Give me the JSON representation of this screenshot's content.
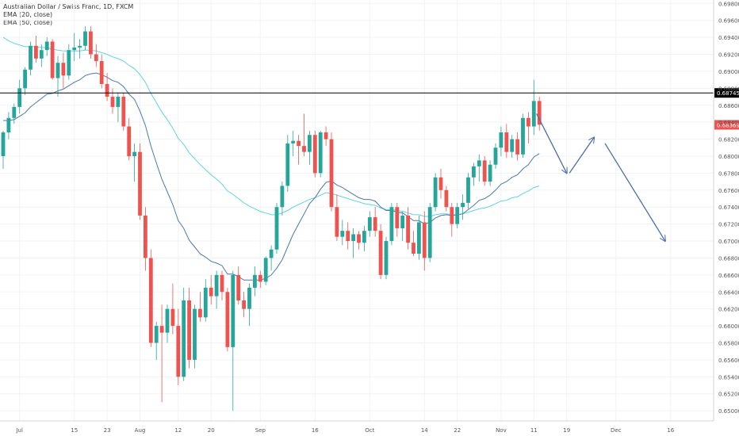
{
  "header": {
    "title": "Australian Dollar / Swiss Franc, 1D, FXCM",
    "ema20_label": "EMA (20, close)",
    "ema50_label": "EMA (50, close)"
  },
  "colors": {
    "up": "#26a69a",
    "down": "#ef5350",
    "ema20": "#4a78b0",
    "ema50": "#5fd3e6",
    "level_line": "#000000",
    "arrow": "#4a6fa5",
    "grid": "#f0f3f6",
    "axis_text": "#555555"
  },
  "chart_data": {
    "type": "candlestick",
    "ylim": [
      0.6488,
      0.6984
    ],
    "y_ticks": [
      "0.69800",
      "0.69600",
      "0.69400",
      "0.69200",
      "0.69000",
      "0.68800",
      "0.68600",
      "0.68400",
      "0.68200",
      "0.68000",
      "0.67800",
      "0.67600",
      "0.67400",
      "0.67200",
      "0.67000",
      "0.66800",
      "0.66600",
      "0.66400",
      "0.66200",
      "0.66000",
      "0.65800",
      "0.65600",
      "0.65400",
      "0.65200",
      "0.65000"
    ],
    "x_ticks": [
      {
        "label": "Jul",
        "index": 3
      },
      {
        "label": "15",
        "index": 13
      },
      {
        "label": "23",
        "index": 19
      },
      {
        "label": "Aug",
        "index": 25
      },
      {
        "label": "12",
        "index": 32
      },
      {
        "label": "20",
        "index": 38
      },
      {
        "label": "Sep",
        "index": 47
      },
      {
        "label": "16",
        "index": 57
      },
      {
        "label": "Oct",
        "index": 67
      },
      {
        "label": "14",
        "index": 77
      },
      {
        "label": "22",
        "index": 83
      },
      {
        "label": "Nov",
        "index": 91
      },
      {
        "label": "11",
        "index": 97
      },
      {
        "label": "19",
        "index": 103
      },
      {
        "label": "Dec",
        "index": 112
      },
      {
        "label": "16",
        "index": 122
      }
    ],
    "horizontal_level": {
      "value": 0.68745,
      "label": "0.68745"
    },
    "last_price": {
      "value": 0.68369,
      "label": "0.68369"
    },
    "candles": [
      [
        0.68,
        0.683,
        0.6785,
        0.6828
      ],
      [
        0.6828,
        0.6852,
        0.682,
        0.6845
      ],
      [
        0.6845,
        0.6862,
        0.6838,
        0.6858
      ],
      [
        0.6858,
        0.689,
        0.685,
        0.688
      ],
      [
        0.688,
        0.6905,
        0.6872,
        0.6902
      ],
      [
        0.6902,
        0.6935,
        0.6895,
        0.693
      ],
      [
        0.693,
        0.6942,
        0.691,
        0.6915
      ],
      [
        0.6915,
        0.6932,
        0.6905,
        0.6925
      ],
      [
        0.6925,
        0.694,
        0.6918,
        0.6935
      ],
      [
        0.6935,
        0.6938,
        0.689,
        0.6892
      ],
      [
        0.6892,
        0.6918,
        0.687,
        0.691
      ],
      [
        0.691,
        0.6922,
        0.688,
        0.6895
      ],
      [
        0.6895,
        0.6932,
        0.689,
        0.6925
      ],
      [
        0.6925,
        0.6945,
        0.6912,
        0.6928
      ],
      [
        0.6928,
        0.6938,
        0.6915,
        0.693
      ],
      [
        0.693,
        0.6953,
        0.6925,
        0.6947
      ],
      [
        0.6947,
        0.6953,
        0.6915,
        0.692
      ],
      [
        0.692,
        0.6932,
        0.6905,
        0.6912
      ],
      [
        0.6912,
        0.692,
        0.688,
        0.6885
      ],
      [
        0.6885,
        0.6898,
        0.6865,
        0.687
      ],
      [
        0.687,
        0.688,
        0.685,
        0.6858
      ],
      [
        0.6858,
        0.6875,
        0.684,
        0.687
      ],
      [
        0.687,
        0.6875,
        0.683,
        0.6835
      ],
      [
        0.6835,
        0.6845,
        0.6795,
        0.68
      ],
      [
        0.68,
        0.6815,
        0.677,
        0.6805
      ],
      [
        0.6805,
        0.6815,
        0.6725,
        0.673
      ],
      [
        0.673,
        0.674,
        0.6665,
        0.668
      ],
      [
        0.668,
        0.669,
        0.6575,
        0.658
      ],
      [
        0.658,
        0.6605,
        0.656,
        0.66
      ],
      [
        0.66,
        0.6625,
        0.651,
        0.6592
      ],
      [
        0.6592,
        0.6625,
        0.658,
        0.662
      ],
      [
        0.662,
        0.665,
        0.659,
        0.66
      ],
      [
        0.66,
        0.662,
        0.653,
        0.654
      ],
      [
        0.654,
        0.6645,
        0.6535,
        0.663
      ],
      [
        0.663,
        0.6645,
        0.655,
        0.656
      ],
      [
        0.656,
        0.6625,
        0.655,
        0.662
      ],
      [
        0.662,
        0.664,
        0.6605,
        0.661
      ],
      [
        0.661,
        0.6655,
        0.6605,
        0.6645
      ],
      [
        0.6645,
        0.666,
        0.6625,
        0.6635
      ],
      [
        0.6635,
        0.6665,
        0.662,
        0.666
      ],
      [
        0.666,
        0.6665,
        0.663,
        0.664
      ],
      [
        0.664,
        0.6645,
        0.657,
        0.6575
      ],
      [
        0.6575,
        0.6665,
        0.65,
        0.666
      ],
      [
        0.666,
        0.667,
        0.6625,
        0.663
      ],
      [
        0.663,
        0.664,
        0.661,
        0.662
      ],
      [
        0.662,
        0.665,
        0.66,
        0.6645
      ],
      [
        0.6645,
        0.667,
        0.6635,
        0.666
      ],
      [
        0.666,
        0.6665,
        0.6645,
        0.6652
      ],
      [
        0.6652,
        0.6682,
        0.6648,
        0.668
      ],
      [
        0.668,
        0.6695,
        0.6665,
        0.669
      ],
      [
        0.669,
        0.6745,
        0.6685,
        0.674
      ],
      [
        0.674,
        0.677,
        0.673,
        0.6765
      ],
      [
        0.6765,
        0.6825,
        0.6758,
        0.6815
      ],
      [
        0.6815,
        0.683,
        0.68,
        0.6818
      ],
      [
        0.6818,
        0.6825,
        0.679,
        0.6812
      ],
      [
        0.6812,
        0.685,
        0.68,
        0.6805
      ],
      [
        0.6805,
        0.683,
        0.679,
        0.6825
      ],
      [
        0.6825,
        0.683,
        0.6775,
        0.678
      ],
      [
        0.678,
        0.683,
        0.6775,
        0.6828
      ],
      [
        0.6828,
        0.6835,
        0.6812,
        0.682
      ],
      [
        0.682,
        0.6828,
        0.6735,
        0.674
      ],
      [
        0.674,
        0.6755,
        0.67,
        0.6705
      ],
      [
        0.6705,
        0.6725,
        0.6695,
        0.6712
      ],
      [
        0.6712,
        0.6722,
        0.669,
        0.67
      ],
      [
        0.67,
        0.6715,
        0.668,
        0.6708
      ],
      [
        0.6708,
        0.6712,
        0.669,
        0.6698
      ],
      [
        0.6698,
        0.6718,
        0.6688,
        0.6712
      ],
      [
        0.6712,
        0.6735,
        0.6705,
        0.6728
      ],
      [
        0.6728,
        0.674,
        0.6705,
        0.6712
      ],
      [
        0.6712,
        0.672,
        0.6655,
        0.666
      ],
      [
        0.666,
        0.6705,
        0.6655,
        0.67
      ],
      [
        0.67,
        0.6745,
        0.6695,
        0.674
      ],
      [
        0.674,
        0.6745,
        0.6705,
        0.6715
      ],
      [
        0.6715,
        0.6735,
        0.67,
        0.673
      ],
      [
        0.673,
        0.674,
        0.669,
        0.6698
      ],
      [
        0.6698,
        0.6712,
        0.6682,
        0.6685
      ],
      [
        0.6685,
        0.673,
        0.6678,
        0.6722
      ],
      [
        0.6722,
        0.6735,
        0.6665,
        0.668
      ],
      [
        0.668,
        0.6745,
        0.6675,
        0.674
      ],
      [
        0.674,
        0.678,
        0.6735,
        0.6775
      ],
      [
        0.6775,
        0.6785,
        0.675,
        0.676
      ],
      [
        0.676,
        0.6765,
        0.6735,
        0.674
      ],
      [
        0.674,
        0.6745,
        0.6705,
        0.672
      ],
      [
        0.672,
        0.6745,
        0.6715,
        0.674
      ],
      [
        0.674,
        0.6755,
        0.6725,
        0.6745
      ],
      [
        0.6745,
        0.678,
        0.6738,
        0.6775
      ],
      [
        0.6775,
        0.6792,
        0.6765,
        0.6788
      ],
      [
        0.6788,
        0.6802,
        0.677,
        0.6795
      ],
      [
        0.6795,
        0.68,
        0.6765,
        0.677
      ],
      [
        0.677,
        0.6795,
        0.6765,
        0.679
      ],
      [
        0.679,
        0.6815,
        0.6785,
        0.681
      ],
      [
        0.681,
        0.6835,
        0.68,
        0.6828
      ],
      [
        0.6828,
        0.6838,
        0.6798,
        0.6805
      ],
      [
        0.6805,
        0.6825,
        0.6798,
        0.682
      ],
      [
        0.682,
        0.6828,
        0.6795,
        0.6802
      ],
      [
        0.6802,
        0.685,
        0.6798,
        0.6845
      ],
      [
        0.6845,
        0.6852,
        0.6815,
        0.6835
      ],
      [
        0.6835,
        0.689,
        0.6825,
        0.6865
      ],
      [
        0.6865,
        0.687,
        0.683,
        0.6837
      ]
    ],
    "ema20": [
      0.6842,
      0.6842,
      0.6843,
      0.6847,
      0.6851,
      0.6858,
      0.6863,
      0.6868,
      0.6873,
      0.6874,
      0.6877,
      0.6879,
      0.6883,
      0.6887,
      0.689,
      0.6895,
      0.6897,
      0.6898,
      0.6896,
      0.6893,
      0.6889,
      0.6887,
      0.6882,
      0.6873,
      0.6867,
      0.6853,
      0.6836,
      0.6812,
      0.6792,
      0.6773,
      0.6758,
      0.6743,
      0.6724,
      0.6715,
      0.6701,
      0.6693,
      0.6685,
      0.6681,
      0.6676,
      0.6674,
      0.6671,
      0.6661,
      0.6661,
      0.6658,
      0.6654,
      0.6654,
      0.6654,
      0.6654,
      0.6656,
      0.666,
      0.6668,
      0.6678,
      0.6693,
      0.6708,
      0.672,
      0.6732,
      0.6744,
      0.6751,
      0.6761,
      0.6769,
      0.6771,
      0.6766,
      0.6763,
      0.6759,
      0.6755,
      0.6751,
      0.6749,
      0.6749,
      0.6747,
      0.674,
      0.6736,
      0.6736,
      0.6734,
      0.6733,
      0.6729,
      0.6724,
      0.6724,
      0.672,
      0.6722,
      0.6727,
      0.673,
      0.6731,
      0.673,
      0.6731,
      0.6732,
      0.6737,
      0.6742,
      0.6748,
      0.675,
      0.6754,
      0.676,
      0.6767,
      0.677,
      0.6775,
      0.6778,
      0.6785,
      0.679,
      0.6799,
      0.6803
    ],
    "ema50": [
      0.694,
      0.6936,
      0.6933,
      0.6931,
      0.6929,
      0.6929,
      0.6929,
      0.6928,
      0.6928,
      0.6926,
      0.6925,
      0.6924,
      0.6924,
      0.6924,
      0.6924,
      0.6925,
      0.6925,
      0.6924,
      0.6922,
      0.692,
      0.6917,
      0.6915,
      0.6912,
      0.6907,
      0.6903,
      0.6896,
      0.6887,
      0.6874,
      0.6863,
      0.6852,
      0.6843,
      0.6833,
      0.6821,
      0.6814,
      0.6804,
      0.6797,
      0.679,
      0.6784,
      0.6778,
      0.6773,
      0.6767,
      0.6759,
      0.6755,
      0.675,
      0.6745,
      0.6741,
      0.6738,
      0.6735,
      0.6733,
      0.6731,
      0.6731,
      0.6733,
      0.6736,
      0.674,
      0.6743,
      0.6746,
      0.6749,
      0.6751,
      0.6754,
      0.6757,
      0.6756,
      0.6754,
      0.6752,
      0.675,
      0.6748,
      0.6746,
      0.6744,
      0.6743,
      0.6742,
      0.6739,
      0.6737,
      0.6737,
      0.6736,
      0.6735,
      0.6733,
      0.6731,
      0.6731,
      0.6729,
      0.6729,
      0.6731,
      0.6732,
      0.6732,
      0.6731,
      0.6731,
      0.6732,
      0.6734,
      0.6736,
      0.6738,
      0.6739,
      0.6741,
      0.6744,
      0.6747,
      0.6748,
      0.6751,
      0.6752,
      0.6756,
      0.6759,
      0.6763,
      0.6765
    ],
    "arrows": [
      [
        [
          97.5,
          0.685
        ],
        [
          103,
          0.678
        ]
      ],
      [
        [
          103.5,
          0.678
        ],
        [
          108,
          0.6822
        ]
      ],
      [
        [
          110,
          0.6815
        ],
        [
          121,
          0.67
        ]
      ]
    ]
  }
}
